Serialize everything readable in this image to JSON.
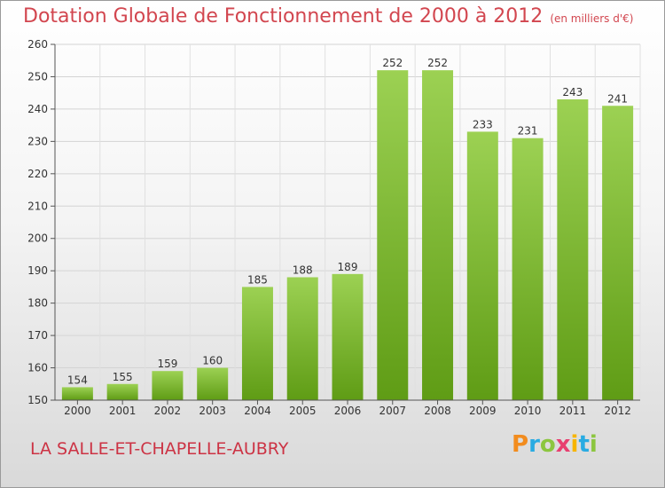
{
  "header": {
    "title": "Dotation Globale de Fonctionnement de 2000 à 2012",
    "unit": "(en milliers d'€)"
  },
  "footer": {
    "commune": "LA SALLE-ET-CHAPELLE-AUBRY",
    "logo": "Proxiti"
  },
  "colors": {
    "title": "#d2464f",
    "bar_top": "#9cd153",
    "bar_bottom": "#5f9c15",
    "logo": [
      "#f28c1e",
      "#29abe2",
      "#8cc63f",
      "#e83f6f",
      "#f7b500",
      "#29abe2",
      "#8cc63f"
    ]
  },
  "chart_data": {
    "type": "bar",
    "title": "Dotation Globale de Fonctionnement de 2000 à 2012",
    "categories": [
      "2000",
      "2001",
      "2002",
      "2003",
      "2004",
      "2005",
      "2006",
      "2007",
      "2008",
      "2009",
      "2010",
      "2011",
      "2012"
    ],
    "values": [
      154,
      155,
      159,
      160,
      185,
      188,
      189,
      252,
      252,
      233,
      231,
      243,
      241
    ],
    "ylim": [
      150,
      260
    ],
    "yticks": [
      150,
      160,
      170,
      180,
      190,
      200,
      210,
      220,
      230,
      240,
      250,
      260
    ],
    "grid": true
  }
}
